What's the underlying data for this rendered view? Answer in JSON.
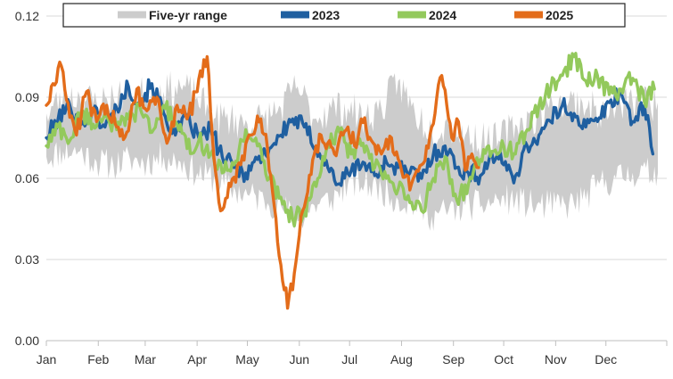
{
  "chart_data": {
    "type": "line",
    "title": "",
    "xlabel": "",
    "ylabel": "",
    "ylim": [
      0,
      0.12
    ],
    "yticks": [
      {
        "value": 0.0,
        "label": "0.00"
      },
      {
        "value": 0.03,
        "label": "0.03"
      },
      {
        "value": 0.06,
        "label": "0.06"
      },
      {
        "value": 0.09,
        "label": "0.09"
      },
      {
        "value": 0.12,
        "label": "0.12"
      }
    ],
    "x_range_days": [
      0,
      365
    ],
    "xticks": [
      {
        "day": 0,
        "label": "Jan"
      },
      {
        "day": 31,
        "label": "Feb"
      },
      {
        "day": 59,
        "label": "Mar"
      },
      {
        "day": 90,
        "label": "Apr"
      },
      {
        "day": 120,
        "label": "May"
      },
      {
        "day": 151,
        "label": "Jun"
      },
      {
        "day": 181,
        "label": "Jul"
      },
      {
        "day": 212,
        "label": "Aug"
      },
      {
        "day": 243,
        "label": "Sep"
      },
      {
        "day": 273,
        "label": "Oct"
      },
      {
        "day": 304,
        "label": "Nov"
      },
      {
        "day": 334,
        "label": "Dec"
      }
    ],
    "grid": true,
    "legend_position": "top",
    "range_band": {
      "name": "Five-yr range",
      "color": "#cccccc",
      "days": [
        0,
        10,
        20,
        30,
        40,
        50,
        60,
        70,
        80,
        90,
        100,
        110,
        120,
        130,
        140,
        150,
        160,
        170,
        180,
        190,
        200,
        210,
        220,
        230,
        240,
        250,
        260,
        270,
        280,
        290,
        300,
        310,
        320,
        330,
        340,
        350,
        365
      ],
      "lower": [
        0.068,
        0.07,
        0.07,
        0.066,
        0.065,
        0.067,
        0.066,
        0.068,
        0.066,
        0.062,
        0.06,
        0.056,
        0.054,
        0.052,
        0.05,
        0.044,
        0.05,
        0.052,
        0.058,
        0.058,
        0.056,
        0.052,
        0.05,
        0.046,
        0.048,
        0.05,
        0.05,
        0.052,
        0.052,
        0.05,
        0.05,
        0.05,
        0.052,
        0.058,
        0.06,
        0.062,
        0.062
      ],
      "upper": [
        0.084,
        0.09,
        0.09,
        0.088,
        0.09,
        0.09,
        0.092,
        0.092,
        0.094,
        0.09,
        0.082,
        0.082,
        0.08,
        0.082,
        0.086,
        0.094,
        0.082,
        0.086,
        0.086,
        0.082,
        0.086,
        0.096,
        0.084,
        0.078,
        0.08,
        0.076,
        0.074,
        0.074,
        0.08,
        0.082,
        0.086,
        0.088,
        0.088,
        0.084,
        0.086,
        0.088,
        0.088
      ]
    },
    "series": [
      {
        "name": "2023",
        "color": "#1f5fa0",
        "days": [
          0,
          7,
          14,
          21,
          28,
          35,
          42,
          49,
          56,
          63,
          70,
          77,
          84,
          91,
          98,
          105,
          112,
          119,
          126,
          133,
          140,
          147,
          154,
          161,
          168,
          175,
          182,
          189,
          196,
          203,
          210,
          217,
          224,
          231,
          238,
          245,
          252,
          259,
          266,
          273,
          280,
          287,
          294,
          301,
          308,
          315,
          322,
          329,
          336,
          343,
          350,
          357,
          362
        ],
        "values": [
          0.075,
          0.082,
          0.087,
          0.08,
          0.085,
          0.079,
          0.086,
          0.094,
          0.088,
          0.095,
          0.084,
          0.076,
          0.082,
          0.075,
          0.078,
          0.068,
          0.064,
          0.062,
          0.067,
          0.071,
          0.076,
          0.082,
          0.079,
          0.072,
          0.064,
          0.058,
          0.063,
          0.066,
          0.061,
          0.066,
          0.064,
          0.062,
          0.06,
          0.069,
          0.072,
          0.064,
          0.062,
          0.061,
          0.069,
          0.065,
          0.061,
          0.072,
          0.076,
          0.081,
          0.087,
          0.084,
          0.079,
          0.081,
          0.088,
          0.092,
          0.081,
          0.087,
          0.069
        ]
      },
      {
        "name": "2024",
        "color": "#93c95c",
        "days": [
          0,
          7,
          14,
          21,
          28,
          35,
          42,
          49,
          56,
          63,
          70,
          77,
          84,
          91,
          98,
          105,
          112,
          119,
          126,
          133,
          140,
          147,
          154,
          161,
          168,
          175,
          182,
          189,
          196,
          203,
          210,
          217,
          224,
          231,
          238,
          245,
          252,
          259,
          266,
          273,
          280,
          287,
          294,
          301,
          308,
          315,
          322,
          329,
          336,
          343,
          350,
          357,
          363
        ],
        "values": [
          0.072,
          0.079,
          0.074,
          0.085,
          0.08,
          0.084,
          0.078,
          0.082,
          0.086,
          0.077,
          0.087,
          0.081,
          0.071,
          0.074,
          0.069,
          0.062,
          0.065,
          0.078,
          0.072,
          0.06,
          0.053,
          0.045,
          0.048,
          0.057,
          0.072,
          0.077,
          0.069,
          0.073,
          0.064,
          0.06,
          0.056,
          0.051,
          0.048,
          0.06,
          0.068,
          0.052,
          0.058,
          0.067,
          0.07,
          0.072,
          0.069,
          0.078,
          0.087,
          0.093,
          0.098,
          0.105,
          0.096,
          0.098,
          0.091,
          0.093,
          0.097,
          0.088,
          0.093
        ]
      },
      {
        "name": "2025",
        "color": "#e36c1a",
        "days": [
          0,
          4,
          8,
          12,
          18,
          24,
          30,
          36,
          42,
          48,
          54,
          60,
          66,
          72,
          78,
          84,
          90,
          96,
          100,
          104,
          110,
          116,
          122,
          128,
          132,
          136,
          140,
          144,
          148,
          152,
          156,
          160,
          164,
          168,
          172,
          176,
          180,
          184,
          188,
          194,
          200,
          206,
          212,
          218,
          224,
          230,
          236,
          242,
          246,
          250,
          254,
          258
        ],
        "values": [
          0.087,
          0.095,
          0.103,
          0.089,
          0.076,
          0.092,
          0.081,
          0.087,
          0.079,
          0.077,
          0.093,
          0.085,
          0.09,
          0.073,
          0.087,
          0.082,
          0.092,
          0.105,
          0.068,
          0.048,
          0.057,
          0.065,
          0.076,
          0.082,
          0.071,
          0.05,
          0.028,
          0.012,
          0.025,
          0.046,
          0.055,
          0.069,
          0.076,
          0.073,
          0.069,
          0.077,
          0.079,
          0.072,
          0.082,
          0.074,
          0.069,
          0.075,
          0.063,
          0.058,
          0.065,
          0.079,
          0.098,
          0.075,
          0.081,
          0.063,
          0.069,
          0.064
        ]
      }
    ]
  }
}
